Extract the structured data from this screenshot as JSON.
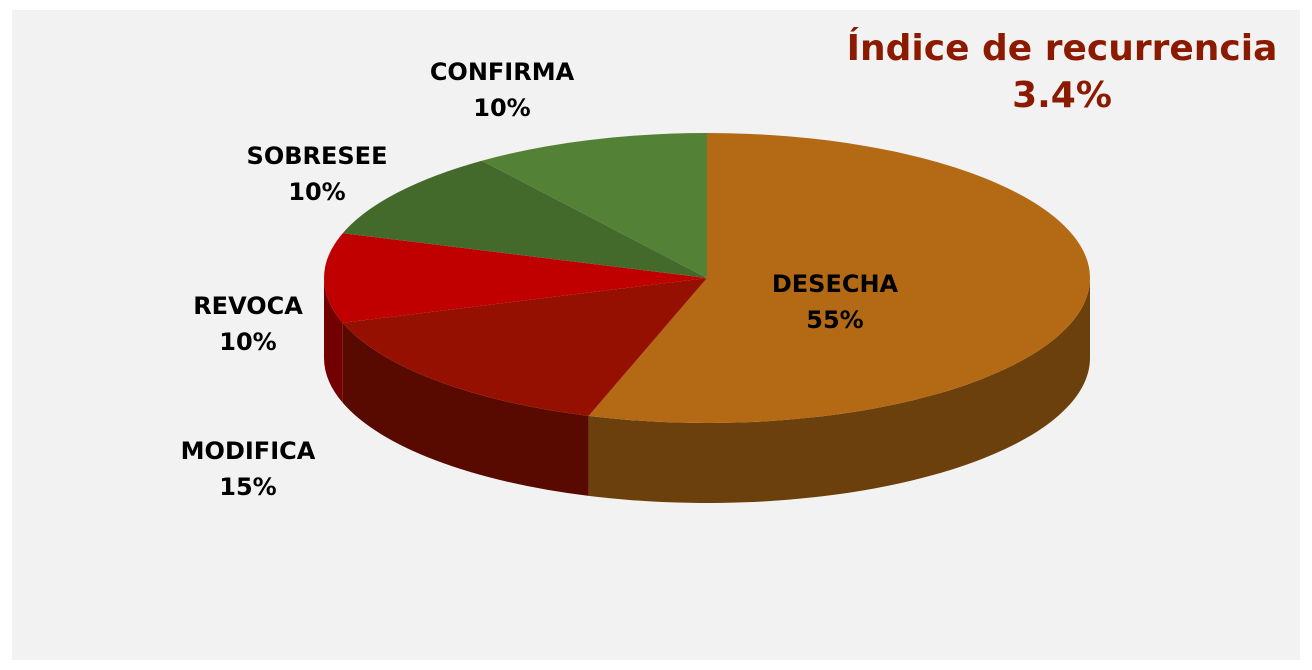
{
  "chart_data": {
    "type": "pie",
    "annotations": [
      "Índice de recurrencia",
      "3.4%"
    ],
    "categories": [
      "DESECHA",
      "MODIFICA",
      "REVOCA",
      "SOBRESEE",
      "CONFIRMA"
    ],
    "values": [
      55,
      15,
      10,
      10,
      10
    ],
    "value_labels": [
      "55%",
      "15%",
      "10%",
      "10%",
      "10%"
    ],
    "colors": [
      "#b46a14",
      "#951000",
      "#c00000",
      "#446a2b",
      "#538135"
    ]
  }
}
